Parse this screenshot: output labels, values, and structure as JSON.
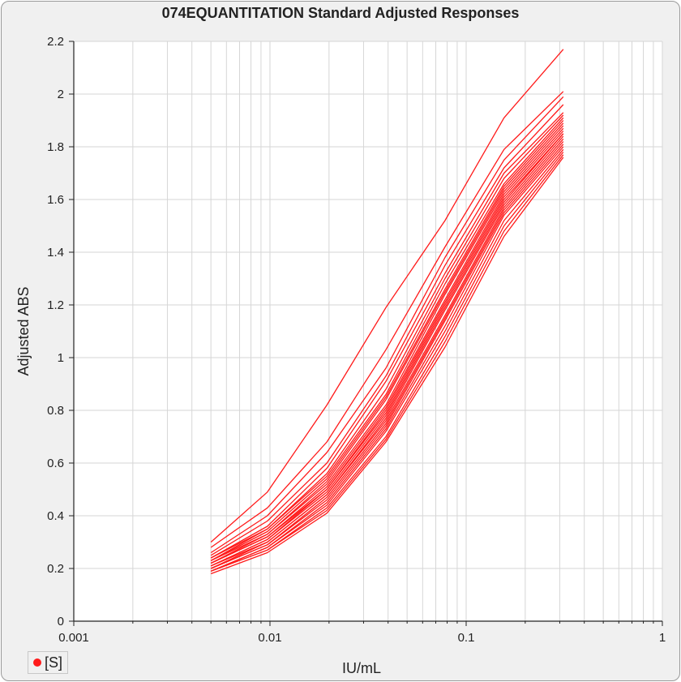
{
  "colors": {
    "series": "#ff1a1a",
    "grid": "#d6d6d6",
    "axis": "#222222",
    "plot_bg": "#ffffff",
    "frame_bg": "#f0f0f0"
  },
  "legend": {
    "label": "[S]",
    "marker_icon": "red-dot-icon"
  },
  "chart_data": {
    "type": "line",
    "title": "074EQUANTITATION Standard Adjusted Responses",
    "xlabel": "IU/mL",
    "ylabel": "Adjusted ABS",
    "x_scale": "log",
    "xlim": [
      0.001,
      1
    ],
    "ylim": [
      0,
      2.2
    ],
    "x_ticks": [
      "0.001",
      "0.01",
      "0.1",
      "1"
    ],
    "y_ticks": [
      "0",
      "0.2",
      "0.4",
      "0.6",
      "0.8",
      "1",
      "1.2",
      "1.4",
      "1.6",
      "1.8",
      "2",
      "2.2"
    ],
    "grid": true,
    "legend_position": "bottom-left",
    "x": [
      0.005,
      0.0097,
      0.0195,
      0.039,
      0.078,
      0.156,
      0.3125
    ],
    "series": [
      {
        "values": [
          0.3,
          0.49,
          0.82,
          1.19,
          1.52,
          1.91,
          2.17
        ]
      },
      {
        "values": [
          0.28,
          0.43,
          0.68,
          1.03,
          1.42,
          1.79,
          2.01
        ]
      },
      {
        "values": [
          0.26,
          0.4,
          0.64,
          0.96,
          1.38,
          1.75,
          1.99
        ]
      },
      {
        "values": [
          0.25,
          0.38,
          0.6,
          0.93,
          1.35,
          1.72,
          1.96
        ]
      },
      {
        "values": [
          0.24,
          0.36,
          0.58,
          0.91,
          1.32,
          1.7,
          1.93
        ]
      },
      {
        "values": [
          0.24,
          0.35,
          0.56,
          0.88,
          1.3,
          1.68,
          1.92
        ]
      },
      {
        "values": [
          0.23,
          0.35,
          0.55,
          0.86,
          1.28,
          1.66,
          1.91
        ]
      },
      {
        "values": [
          0.23,
          0.34,
          0.54,
          0.85,
          1.26,
          1.65,
          1.9
        ]
      },
      {
        "values": [
          0.23,
          0.33,
          0.53,
          0.84,
          1.25,
          1.64,
          1.89
        ]
      },
      {
        "values": [
          0.22,
          0.33,
          0.52,
          0.82,
          1.24,
          1.63,
          1.88
        ]
      },
      {
        "values": [
          0.22,
          0.32,
          0.51,
          0.81,
          1.22,
          1.62,
          1.87
        ]
      },
      {
        "values": [
          0.22,
          0.32,
          0.5,
          0.8,
          1.21,
          1.61,
          1.86
        ]
      },
      {
        "values": [
          0.21,
          0.31,
          0.5,
          0.79,
          1.2,
          1.6,
          1.85
        ]
      },
      {
        "values": [
          0.21,
          0.31,
          0.49,
          0.78,
          1.19,
          1.59,
          1.85
        ]
      },
      {
        "values": [
          0.21,
          0.3,
          0.48,
          0.77,
          1.18,
          1.58,
          1.84
        ]
      },
      {
        "values": [
          0.2,
          0.3,
          0.48,
          0.76,
          1.16,
          1.57,
          1.83
        ]
      },
      {
        "values": [
          0.2,
          0.29,
          0.47,
          0.75,
          1.15,
          1.56,
          1.82
        ]
      },
      {
        "values": [
          0.2,
          0.29,
          0.46,
          0.74,
          1.14,
          1.55,
          1.81
        ]
      },
      {
        "values": [
          0.19,
          0.28,
          0.45,
          0.73,
          1.12,
          1.54,
          1.8
        ]
      },
      {
        "values": [
          0.19,
          0.28,
          0.44,
          0.72,
          1.1,
          1.52,
          1.79
        ]
      },
      {
        "values": [
          0.19,
          0.27,
          0.43,
          0.7,
          1.08,
          1.5,
          1.78
        ]
      },
      {
        "values": [
          0.19,
          0.27,
          0.42,
          0.69,
          1.06,
          1.48,
          1.77
        ]
      },
      {
        "values": [
          0.18,
          0.26,
          0.41,
          0.68,
          1.04,
          1.46,
          1.76
        ]
      }
    ]
  }
}
